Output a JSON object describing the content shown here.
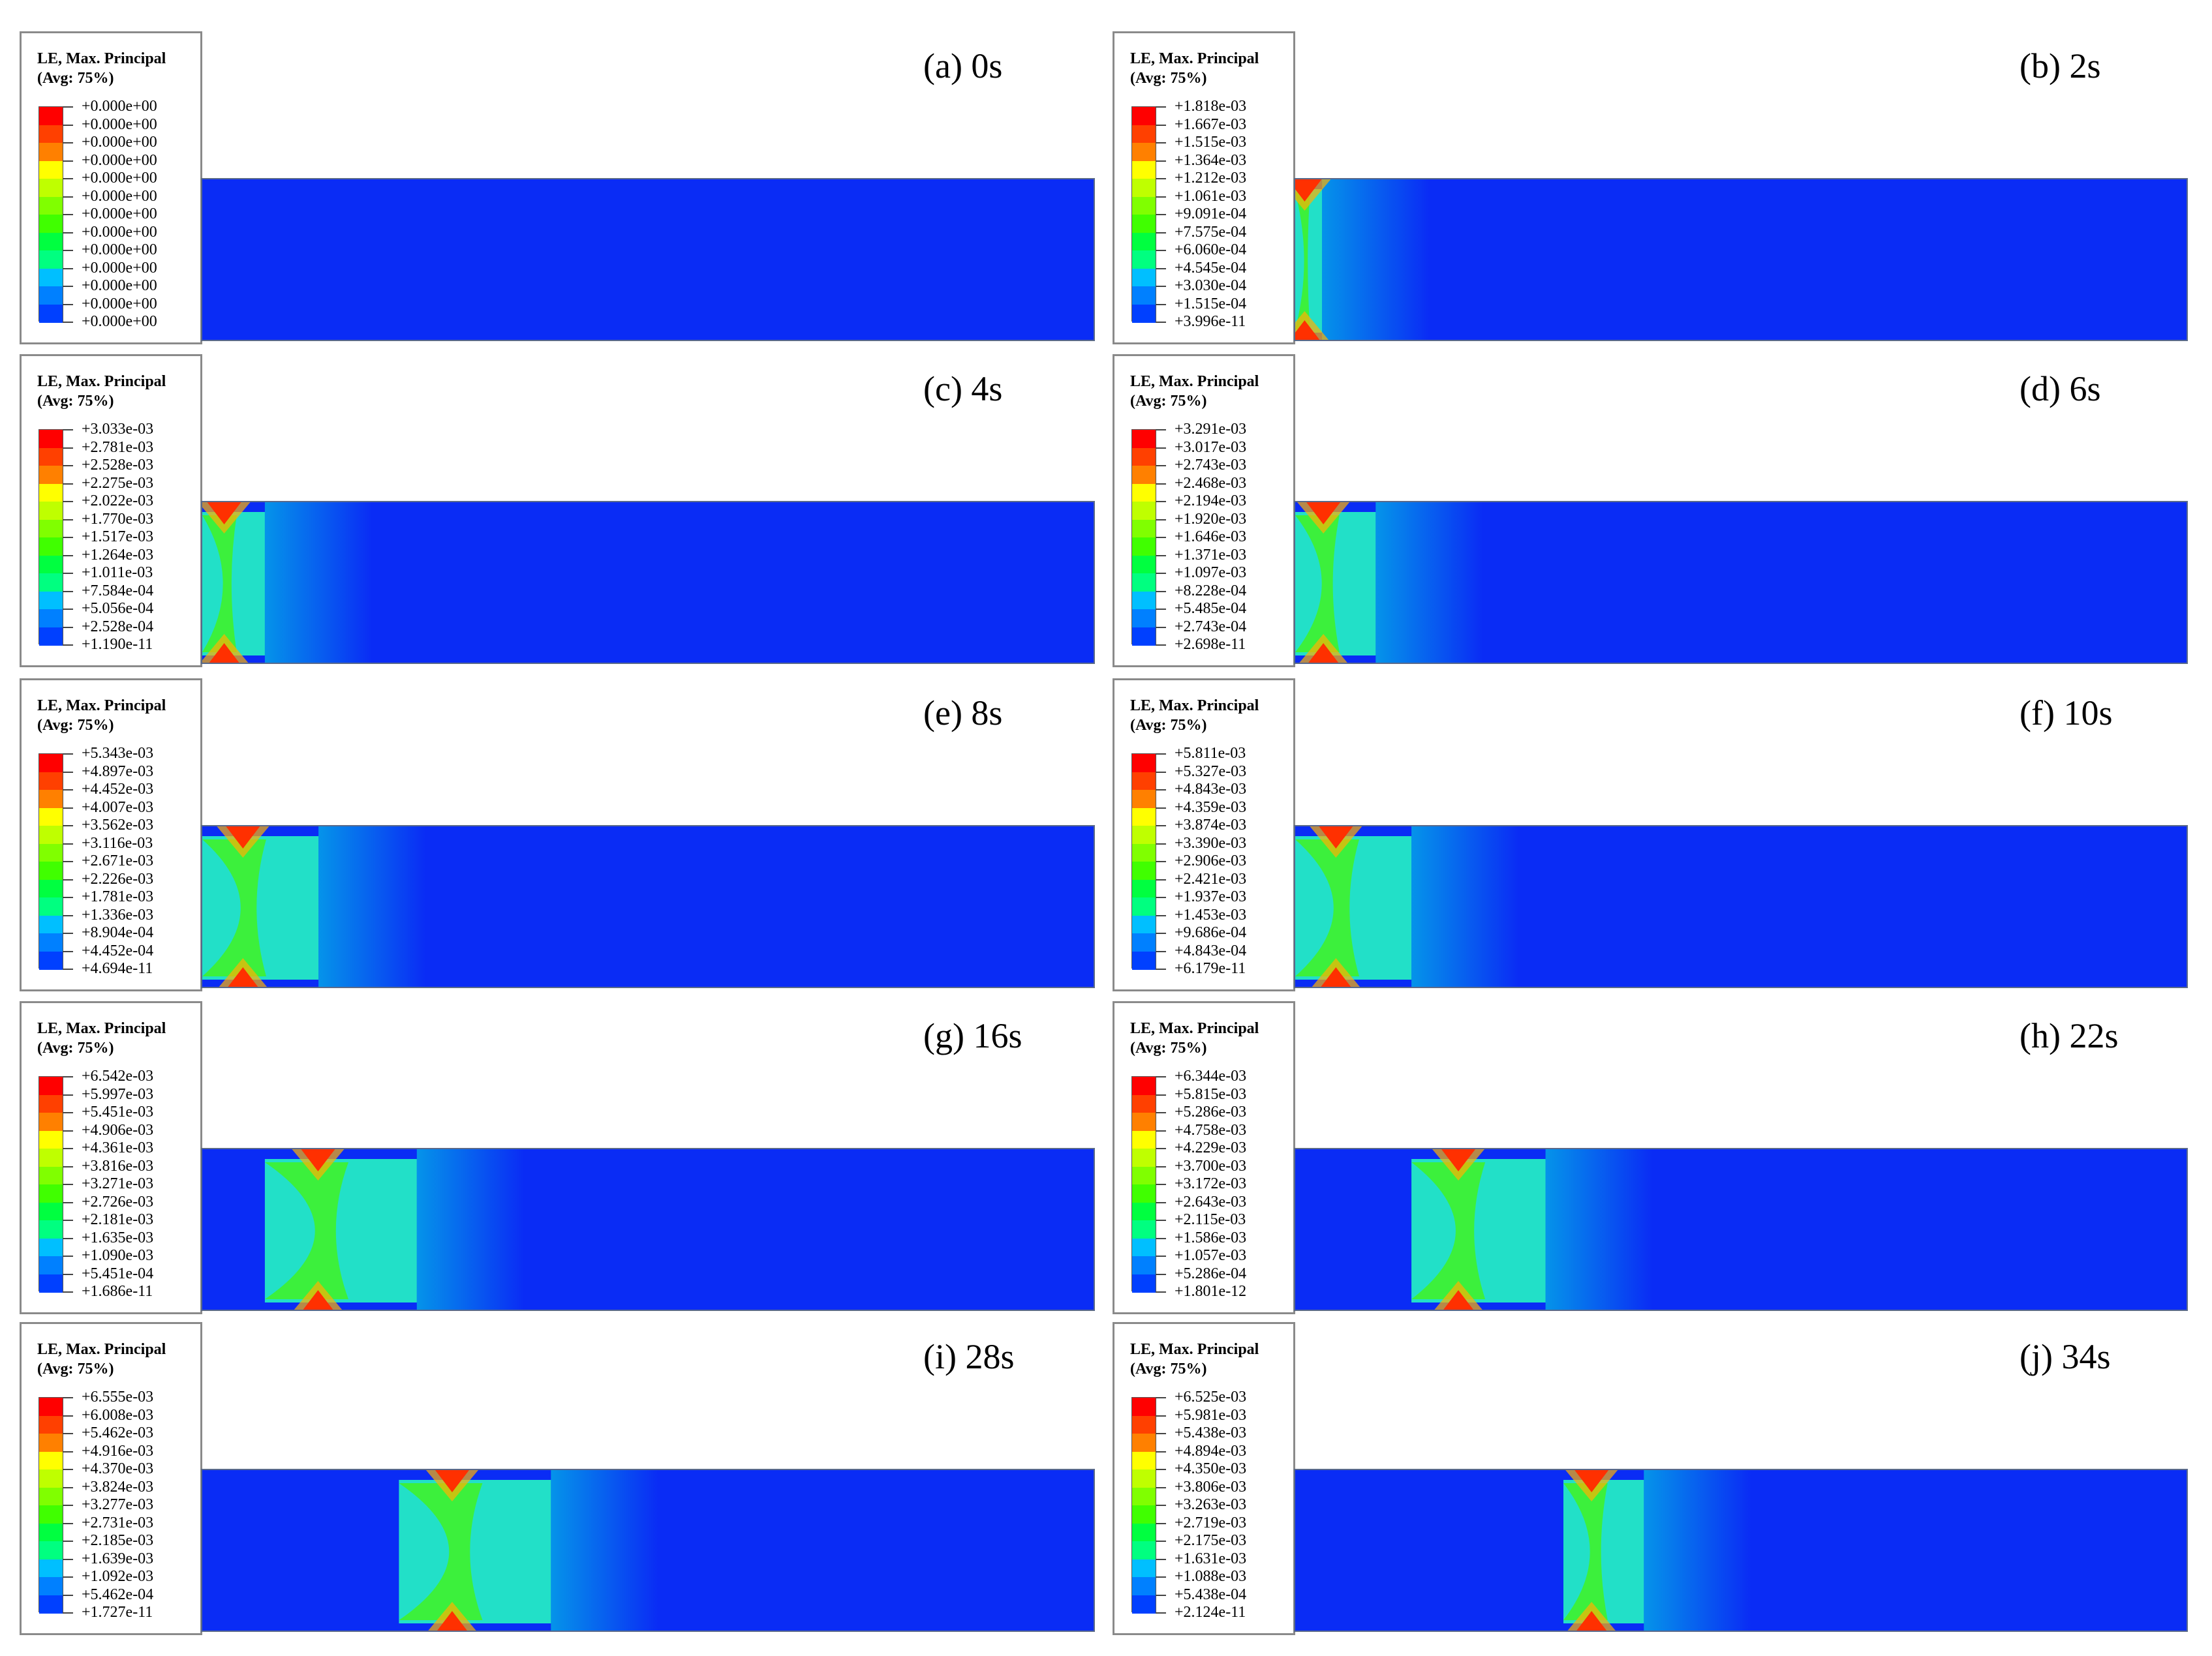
{
  "legend_title": "LE, Max. Principal",
  "legend_avg": "(Avg: 75%)",
  "colors": {
    "bands": [
      "#ff0000",
      "#ff4000",
      "#ff8000",
      "#ffbf00",
      "#ffff00",
      "#bfff00",
      "#80ff00",
      "#40ff00",
      "#00ff40",
      "#00ff80",
      "#00ffbf",
      "#00bfff",
      "#0080ff",
      "#0040ff"
    ],
    "background_blue": "#0a2cf5"
  },
  "panels": [
    {
      "label": "(a) 0s",
      "legend_values": [
        "+0.000e+00",
        "+0.000e+00",
        "+0.000e+00",
        "+0.000e+00",
        "+0.000e+00",
        "+0.000e+00",
        "+0.000e+00",
        "+0.000e+00",
        "+0.000e+00",
        "+0.000e+00",
        "+0.000e+00",
        "+0.000e+00",
        "+0.000e+00"
      ]
    },
    {
      "label": "(b) 2s",
      "legend_values": [
        "+1.818e-03",
        "+1.667e-03",
        "+1.515e-03",
        "+1.364e-03",
        "+1.212e-03",
        "+1.061e-03",
        "+9.091e-04",
        "+7.575e-04",
        "+6.060e-04",
        "+4.545e-04",
        "+3.030e-04",
        "+1.515e-04",
        "+3.996e-11"
      ]
    },
    {
      "label": "(c) 4s",
      "legend_values": [
        "+3.033e-03",
        "+2.781e-03",
        "+2.528e-03",
        "+2.275e-03",
        "+2.022e-03",
        "+1.770e-03",
        "+1.517e-03",
        "+1.264e-03",
        "+1.011e-03",
        "+7.584e-04",
        "+5.056e-04",
        "+2.528e-04",
        "+1.190e-11"
      ]
    },
    {
      "label": "(d) 6s",
      "legend_values": [
        "+3.291e-03",
        "+3.017e-03",
        "+2.743e-03",
        "+2.468e-03",
        "+2.194e-03",
        "+1.920e-03",
        "+1.646e-03",
        "+1.371e-03",
        "+1.097e-03",
        "+8.228e-04",
        "+5.485e-04",
        "+2.743e-04",
        "+2.698e-11"
      ]
    },
    {
      "label": "(e) 8s",
      "legend_values": [
        "+5.343e-03",
        "+4.897e-03",
        "+4.452e-03",
        "+4.007e-03",
        "+3.562e-03",
        "+3.116e-03",
        "+2.671e-03",
        "+2.226e-03",
        "+1.781e-03",
        "+1.336e-03",
        "+8.904e-04",
        "+4.452e-04",
        "+4.694e-11"
      ]
    },
    {
      "label": "(f) 10s",
      "legend_values": [
        "+5.811e-03",
        "+5.327e-03",
        "+4.843e-03",
        "+4.359e-03",
        "+3.874e-03",
        "+3.390e-03",
        "+2.906e-03",
        "+2.421e-03",
        "+1.937e-03",
        "+1.453e-03",
        "+9.686e-04",
        "+4.843e-04",
        "+6.179e-11"
      ]
    },
    {
      "label": "(g) 16s",
      "legend_values": [
        "+6.542e-03",
        "+5.997e-03",
        "+5.451e-03",
        "+4.906e-03",
        "+4.361e-03",
        "+3.816e-03",
        "+3.271e-03",
        "+2.726e-03",
        "+2.181e-03",
        "+1.635e-03",
        "+1.090e-03",
        "+5.451e-04",
        "+1.686e-11"
      ]
    },
    {
      "label": "(h) 22s",
      "legend_values": [
        "+6.344e-03",
        "+5.815e-03",
        "+5.286e-03",
        "+4.758e-03",
        "+4.229e-03",
        "+3.700e-03",
        "+3.172e-03",
        "+2.643e-03",
        "+2.115e-03",
        "+1.586e-03",
        "+1.057e-03",
        "+5.286e-04",
        "+1.801e-12"
      ]
    },
    {
      "label": "(i) 28s",
      "legend_values": [
        "+6.555e-03",
        "+6.008e-03",
        "+5.462e-03",
        "+4.916e-03",
        "+4.370e-03",
        "+3.824e-03",
        "+3.277e-03",
        "+2.731e-03",
        "+2.185e-03",
        "+1.639e-03",
        "+1.092e-03",
        "+5.462e-04",
        "+1.727e-11"
      ]
    },
    {
      "label": "(j) 34s",
      "legend_values": [
        "+6.525e-03",
        "+5.981e-03",
        "+5.438e-03",
        "+4.894e-03",
        "+4.350e-03",
        "+3.806e-03",
        "+3.263e-03",
        "+2.719e-03",
        "+2.175e-03",
        "+1.631e-03",
        "+1.088e-03",
        "+5.438e-04",
        "+2.124e-11"
      ]
    }
  ]
}
